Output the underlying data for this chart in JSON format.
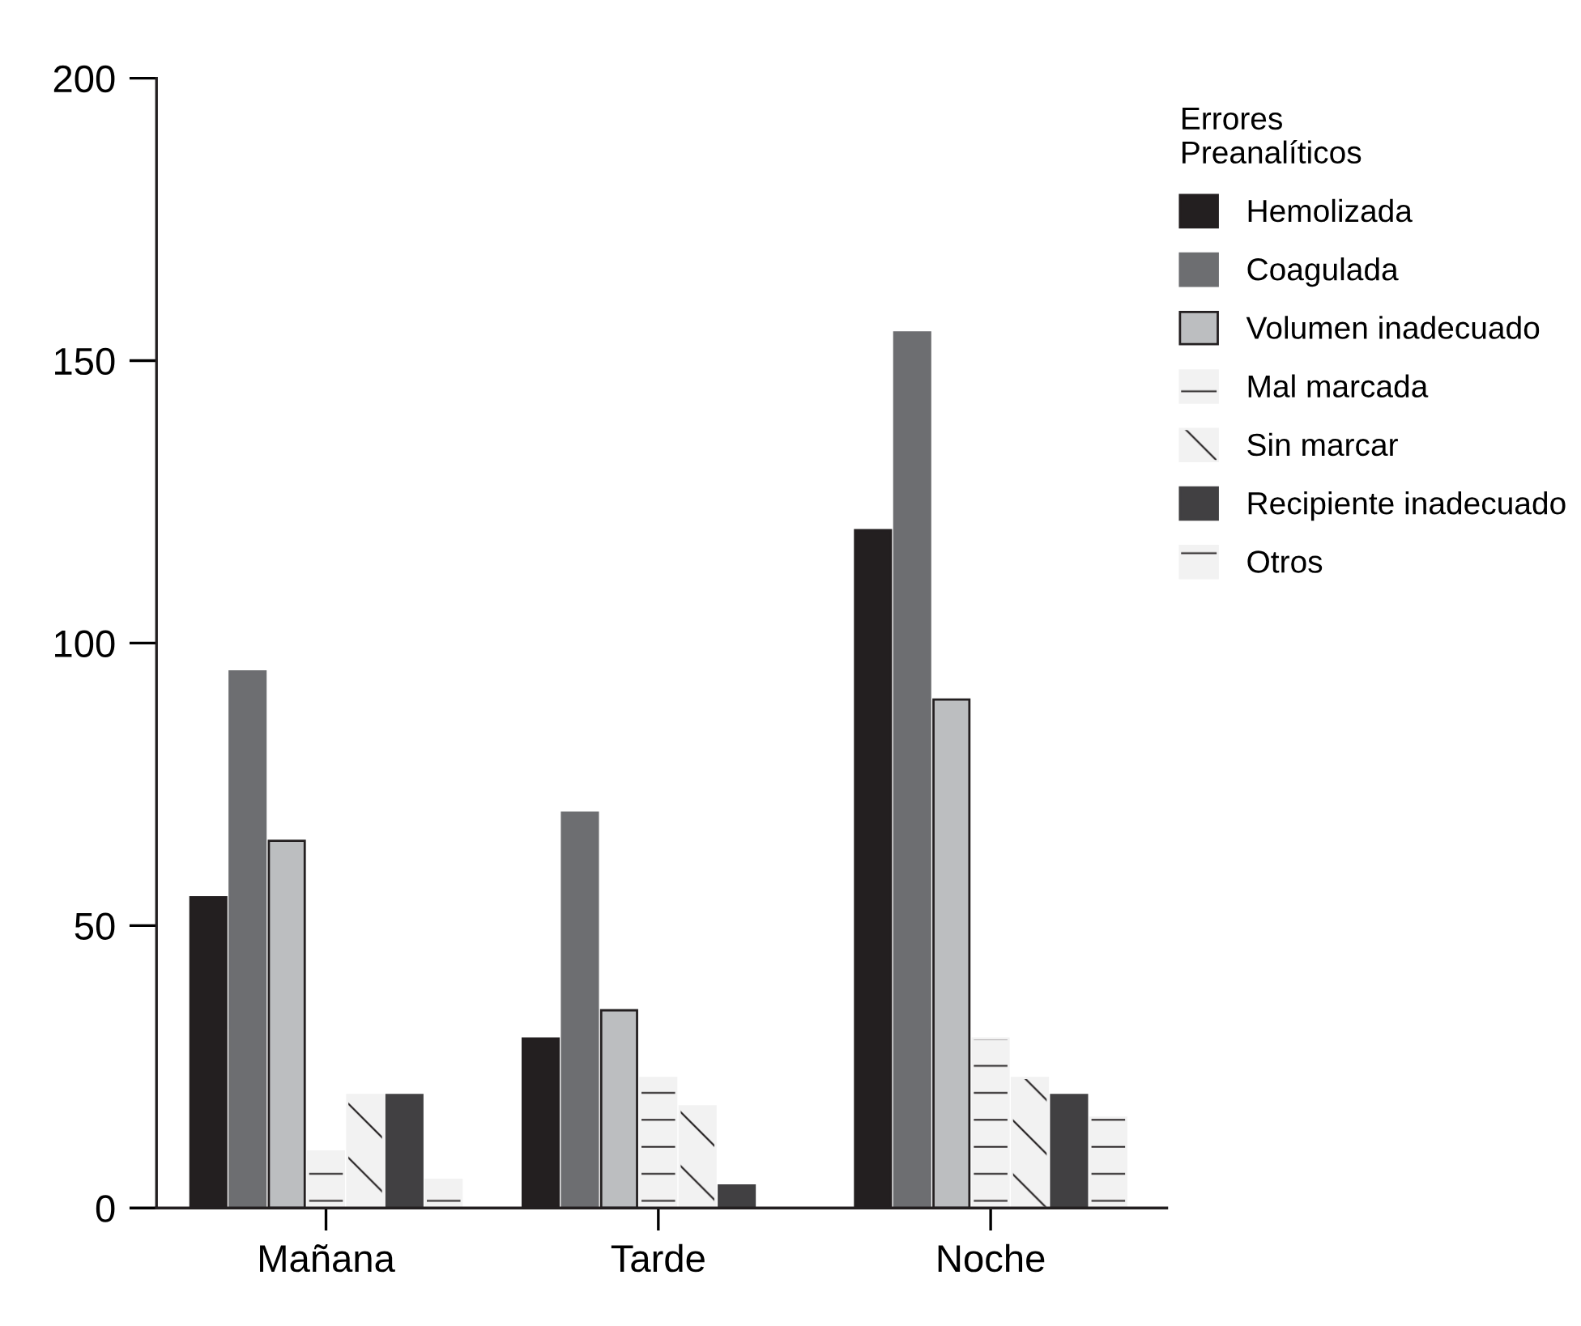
{
  "chart_data": {
    "type": "bar",
    "legend_title": "Errores\nPreanalíticos",
    "categories": [
      "Mañana",
      "Tarde",
      "Noche"
    ],
    "series": [
      {
        "name": "Hemolizada",
        "color": "#231f20",
        "values": [
          55,
          30,
          120
        ]
      },
      {
        "name": "Coagulada",
        "color": "#6d6e71",
        "values": [
          95,
          70,
          155
        ]
      },
      {
        "name": "Volumen inadecuado",
        "color": "#bcbec0",
        "values": [
          65,
          35,
          90
        ]
      },
      {
        "name": "Mal marcada",
        "color": "#f2f2f2",
        "values": [
          10,
          23,
          30
        ]
      },
      {
        "name": "Sin marcar",
        "color": "#f2f2f2",
        "values": [
          20,
          18,
          23
        ]
      },
      {
        "name": "Recipiente inadecuado",
        "color": "#414042",
        "values": [
          20,
          4,
          20
        ]
      },
      {
        "name": "Otros",
        "color": "#f2f2f2",
        "values": [
          5,
          null,
          16
        ]
      }
    ],
    "ylim": [
      0,
      200
    ],
    "yticks": [
      0,
      50,
      100,
      150,
      200
    ],
    "grid": false,
    "legend": "top right"
  }
}
